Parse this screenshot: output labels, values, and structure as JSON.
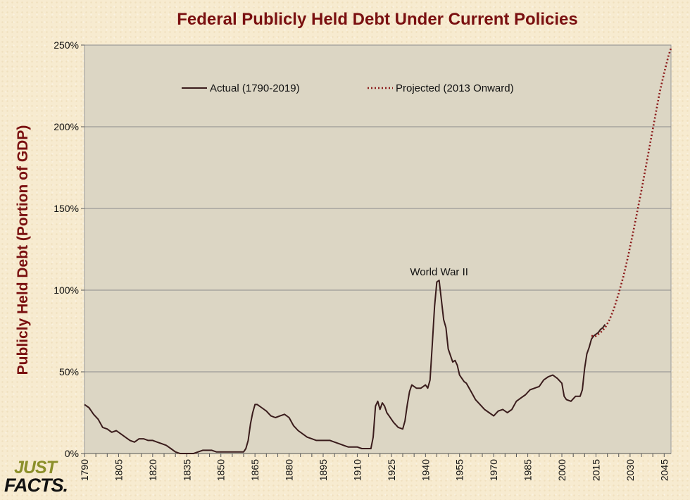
{
  "colors": {
    "title": "#7a1010",
    "axis_title": "#7a1010",
    "actual_line": "#3a1c1c",
    "projected_line": "#8b1a1a",
    "plot_background": "#dcd6c4",
    "grid": "#8c8c8c"
  },
  "logo": {
    "line1": "JUST",
    "line2": "FACTS."
  },
  "chart_data": {
    "type": "line",
    "title": "Federal Publicly Held Debt Under Current Policies",
    "ylabel": "Publicly Held Debt (Portion of GDP)",
    "xlabel": "",
    "xlim": [
      1790,
      2048
    ],
    "ylim": [
      0,
      250
    ],
    "y_ticks": [
      0,
      50,
      100,
      150,
      200,
      250
    ],
    "y_tick_labels": [
      "0%",
      "50%",
      "100%",
      "150%",
      "200%",
      "250%"
    ],
    "x_ticks": [
      1790,
      1805,
      1820,
      1835,
      1850,
      1865,
      1880,
      1895,
      1910,
      1925,
      1940,
      1955,
      1970,
      1985,
      2000,
      2015,
      2030,
      2045
    ],
    "x_tick_labels": [
      "1790",
      "1805",
      "1820",
      "1835",
      "1850",
      "1865",
      "1880",
      "1895",
      "1910",
      "1925",
      "1940",
      "1955",
      "1970",
      "1985",
      "2000",
      "2015",
      "2030",
      "2045"
    ],
    "grid": true,
    "legend": "top",
    "annotations": [
      {
        "text": "World War II",
        "x": 1946,
        "y": 109
      }
    ],
    "series": [
      {
        "name": "Actual (1790-2019)",
        "style": "solid",
        "x": [
          1790,
          1792,
          1794,
          1796,
          1798,
          1800,
          1802,
          1804,
          1806,
          1808,
          1810,
          1812,
          1814,
          1816,
          1818,
          1820,
          1822,
          1824,
          1826,
          1828,
          1830,
          1832,
          1834,
          1836,
          1838,
          1840,
          1842,
          1844,
          1846,
          1848,
          1850,
          1852,
          1854,
          1856,
          1858,
          1860,
          1861,
          1862,
          1863,
          1864,
          1865,
          1866,
          1868,
          1870,
          1872,
          1874,
          1876,
          1878,
          1880,
          1882,
          1884,
          1886,
          1888,
          1890,
          1892,
          1894,
          1896,
          1898,
          1900,
          1902,
          1904,
          1906,
          1908,
          1910,
          1912,
          1914,
          1916,
          1917,
          1918,
          1919,
          1920,
          1921,
          1922,
          1923,
          1924,
          1926,
          1928,
          1930,
          1931,
          1932,
          1933,
          1934,
          1936,
          1938,
          1940,
          1941,
          1942,
          1943,
          1944,
          1945,
          1946,
          1947,
          1948,
          1949,
          1950,
          1951,
          1952,
          1953,
          1954,
          1955,
          1956,
          1957,
          1958,
          1960,
          1962,
          1964,
          1966,
          1968,
          1970,
          1972,
          1974,
          1976,
          1978,
          1980,
          1982,
          1984,
          1986,
          1988,
          1990,
          1992,
          1994,
          1996,
          1998,
          2000,
          2001,
          2002,
          2004,
          2006,
          2007,
          2008,
          2009,
          2010,
          2011,
          2012,
          2013,
          2014,
          2015,
          2016,
          2017,
          2018,
          2019
        ],
        "values": [
          30,
          28,
          24,
          21,
          16,
          15,
          13,
          14,
          12,
          10,
          8,
          7,
          9,
          9,
          8,
          8,
          7,
          6,
          5,
          3,
          1,
          0,
          0,
          0,
          0,
          1,
          2,
          2,
          2,
          1,
          1,
          1,
          1,
          1,
          1,
          1,
          3,
          8,
          18,
          25,
          30,
          30,
          28,
          26,
          23,
          22,
          23,
          24,
          22,
          17,
          14,
          12,
          10,
          9,
          8,
          8,
          8,
          8,
          7,
          6,
          5,
          4,
          4,
          4,
          3,
          3,
          3,
          10,
          29,
          32,
          27,
          31,
          29,
          25,
          23,
          19,
          16,
          15,
          20,
          30,
          38,
          42,
          40,
          40,
          42,
          40,
          45,
          67,
          90,
          105,
          106,
          94,
          82,
          77,
          64,
          60,
          56,
          57,
          54,
          48,
          46,
          44,
          43,
          38,
          33,
          30,
          27,
          25,
          23,
          26,
          27,
          25,
          27,
          32,
          34,
          36,
          39,
          40,
          41,
          45,
          47,
          48,
          46,
          43,
          35,
          33,
          32,
          35,
          35,
          35,
          39,
          52,
          61,
          65,
          70,
          72,
          73,
          74,
          76,
          77,
          79
        ]
      },
      {
        "name": "Projected (2013 Onward)",
        "style": "dotted",
        "x": [
          2013,
          2015,
          2017,
          2019,
          2021,
          2023,
          2025,
          2027,
          2029,
          2031,
          2033,
          2035,
          2037,
          2039,
          2041,
          2043,
          2045,
          2047,
          2048
        ],
        "values": [
          72,
          72,
          74,
          77,
          82,
          89,
          98,
          108,
          120,
          133,
          147,
          161,
          176,
          191,
          206,
          221,
          233,
          244,
          248
        ]
      }
    ]
  }
}
